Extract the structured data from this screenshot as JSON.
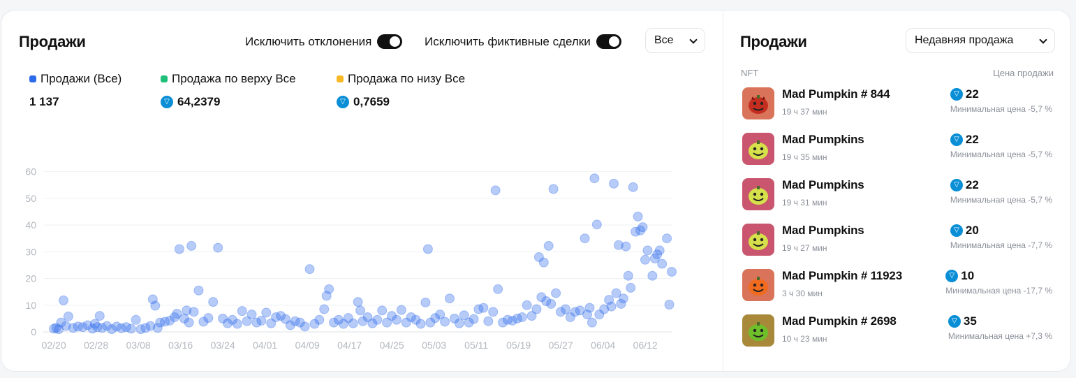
{
  "left_panel": {
    "title": "Продажи",
    "toggle_outliers_label": "Исключить отклонения",
    "toggle_fake_label": "Исключить фиктивные сделки",
    "filter_value": "Все",
    "legend": [
      {
        "label": "Продажи (Все)",
        "value": "1 137",
        "color": "#2d6bea",
        "has_ton_icon": false
      },
      {
        "label": "Продажа по верху Все",
        "value": "64,2379",
        "color": "#1fbf7a",
        "has_ton_icon": true
      },
      {
        "label": "Продажа по низу Все",
        "value": "0,7659",
        "color": "#f7b924",
        "has_ton_icon": true
      }
    ]
  },
  "chart_data": {
    "type": "scatter",
    "title": "",
    "xlabel": "",
    "ylabel": "",
    "ylim": [
      0,
      62
    ],
    "yticks": [
      0,
      10,
      20,
      30,
      40,
      50,
      60
    ],
    "xticks": [
      "02/20",
      "02/28",
      "03/08",
      "03/16",
      "03/24",
      "04/01",
      "04/09",
      "04/17",
      "04/25",
      "05/03",
      "05/11",
      "05/19",
      "05/27",
      "06/04",
      "06/12"
    ],
    "xlim_days": [
      -2,
      117
    ],
    "grid": true,
    "point_color": "#2d6bea",
    "series": [
      {
        "name": "Продажи (Все)",
        "points": [
          [
            0,
            1.2
          ],
          [
            0.5,
            1.5
          ],
          [
            1,
            1.0
          ],
          [
            1.5,
            3.5
          ],
          [
            2,
            11.8
          ],
          [
            2.5,
            2.2
          ],
          [
            3,
            5.8
          ],
          [
            4,
            1.5
          ],
          [
            5,
            2.0
          ],
          [
            6,
            1.8
          ],
          [
            7,
            2.5
          ],
          [
            8,
            1.2
          ],
          [
            8.5,
            3.0
          ],
          [
            9,
            1.8
          ],
          [
            9.5,
            6.0
          ],
          [
            10,
            1.5
          ],
          [
            11,
            2.2
          ],
          [
            12,
            1.0
          ],
          [
            13,
            2.0
          ],
          [
            14,
            1.4
          ],
          [
            15,
            1.8
          ],
          [
            16,
            1.2
          ],
          [
            17,
            4.5
          ],
          [
            18,
            1.0
          ],
          [
            19,
            1.5
          ],
          [
            20,
            2.2
          ],
          [
            20.5,
            12.2
          ],
          [
            21,
            9.8
          ],
          [
            21.5,
            1.5
          ],
          [
            22,
            3.5
          ],
          [
            23,
            3.8
          ],
          [
            24,
            4.2
          ],
          [
            25,
            5.5
          ],
          [
            25.5,
            6.8
          ],
          [
            26,
            31.0
          ],
          [
            27,
            5.0
          ],
          [
            27.5,
            8.0
          ],
          [
            28,
            3.5
          ],
          [
            28.5,
            32.2
          ],
          [
            29,
            7.5
          ],
          [
            30,
            15.5
          ],
          [
            31,
            3.8
          ],
          [
            32,
            5.2
          ],
          [
            33,
            11.2
          ],
          [
            34,
            31.5
          ],
          [
            35,
            5.0
          ],
          [
            36,
            3.2
          ],
          [
            37,
            4.5
          ],
          [
            38,
            3.0
          ],
          [
            39,
            7.8
          ],
          [
            40,
            4.0
          ],
          [
            41,
            6.5
          ],
          [
            42,
            3.5
          ],
          [
            43,
            4.2
          ],
          [
            44,
            7.2
          ],
          [
            45,
            3.2
          ],
          [
            46,
            5.5
          ],
          [
            47,
            6.0
          ],
          [
            48,
            4.8
          ],
          [
            49,
            2.5
          ],
          [
            50,
            4.0
          ],
          [
            51,
            3.5
          ],
          [
            52,
            2.0
          ],
          [
            53,
            23.5
          ],
          [
            54,
            3.0
          ],
          [
            55,
            4.5
          ],
          [
            56,
            8.5
          ],
          [
            56.5,
            13.5
          ],
          [
            57,
            16.0
          ],
          [
            58,
            3.5
          ],
          [
            59,
            4.5
          ],
          [
            60,
            3.0
          ],
          [
            61,
            5.2
          ],
          [
            62,
            3.2
          ],
          [
            63,
            11.2
          ],
          [
            63.5,
            8.0
          ],
          [
            64,
            4.0
          ],
          [
            65,
            5.5
          ],
          [
            66,
            3.2
          ],
          [
            67,
            4.5
          ],
          [
            68,
            8.0
          ],
          [
            69,
            3.5
          ],
          [
            70,
            6.0
          ],
          [
            71,
            4.5
          ],
          [
            72,
            8.2
          ],
          [
            73,
            3.5
          ],
          [
            74,
            5.5
          ],
          [
            75,
            4.5
          ],
          [
            76,
            3.0
          ],
          [
            77,
            11.0
          ],
          [
            77.5,
            31.0
          ],
          [
            78,
            3.5
          ],
          [
            79,
            5.2
          ],
          [
            80,
            6.5
          ],
          [
            81,
            3.8
          ],
          [
            82,
            12.5
          ],
          [
            83,
            5.0
          ],
          [
            84,
            3.2
          ],
          [
            85,
            6.2
          ],
          [
            86,
            3.5
          ],
          [
            87,
            4.8
          ],
          [
            88,
            8.5
          ],
          [
            89,
            9.0
          ],
          [
            90,
            4.0
          ],
          [
            91,
            7.5
          ],
          [
            91.5,
            53.0
          ],
          [
            92,
            16.0
          ],
          [
            93,
            3.5
          ],
          [
            94,
            4.5
          ],
          [
            95,
            4.2
          ],
          [
            96,
            5.0
          ],
          [
            97,
            5.5
          ],
          [
            98,
            10.0
          ],
          [
            99,
            6.0
          ],
          [
            100,
            8.5
          ],
          [
            100.5,
            28.0
          ],
          [
            101,
            13.0
          ],
          [
            101.5,
            26.0
          ],
          [
            102,
            11.5
          ],
          [
            102.5,
            32.2
          ],
          [
            103,
            10.5
          ],
          [
            103.5,
            53.5
          ],
          [
            104,
            14.5
          ],
          [
            105,
            7.5
          ],
          [
            106,
            8.5
          ],
          [
            107,
            5.5
          ],
          [
            108,
            7.5
          ],
          [
            109,
            8.0
          ],
          [
            110,
            35.0
          ],
          [
            110.5,
            6.5
          ],
          [
            111,
            9.0
          ],
          [
            111.5,
            3.5
          ],
          [
            112,
            57.5
          ],
          [
            112.5,
            40.2
          ],
          [
            113,
            6.5
          ],
          [
            114,
            8.5
          ],
          [
            115,
            12.0
          ],
          [
            115.5,
            9.5
          ],
          [
            116,
            55.5
          ],
          [
            116.5,
            14.5
          ],
          [
            117,
            32.5
          ],
          [
            117.5,
            10.5
          ],
          [
            118,
            12.5
          ],
          [
            118.5,
            32.0
          ],
          [
            119,
            21.0
          ],
          [
            119.5,
            16.5
          ],
          [
            120,
            54.2
          ],
          [
            120.5,
            37.5
          ],
          [
            121,
            43.2
          ],
          [
            121.5,
            38.0
          ],
          [
            122,
            39.2
          ],
          [
            122.5,
            27.0
          ],
          [
            123,
            30.5
          ],
          [
            124,
            21.0
          ],
          [
            124.5,
            27.5
          ],
          [
            125,
            29.0
          ],
          [
            125.5,
            30.5
          ],
          [
            126,
            25.5
          ],
          [
            127,
            35.0
          ],
          [
            127.5,
            10.2
          ],
          [
            128,
            22.5
          ]
        ]
      }
    ]
  },
  "right_panel": {
    "title": "Продажи",
    "sort_value": "Недавняя продажа",
    "col_nft": "NFT",
    "col_price": "Цена продажи",
    "items": [
      {
        "name": "Mad Pumpkin  # 844",
        "time": "19 ч 37 мин",
        "price": "22",
        "note": "Минимальная цена -5,7 %",
        "bg": "#d9745a",
        "pumpkin": "#c42d20",
        "face": "devil"
      },
      {
        "name": "Mad Pumpkins",
        "time": "19 ч 35 мин",
        "price": "22",
        "note": "Минимальная цена -5,7 %",
        "bg": "#c9566e",
        "pumpkin": "#d6e04a",
        "face": "smile"
      },
      {
        "name": "Mad Pumpkins",
        "time": "19 ч 31 мин",
        "price": "22",
        "note": "Минимальная цена -5,7 %",
        "bg": "#c9566e",
        "pumpkin": "#d6e04a",
        "face": "smile"
      },
      {
        "name": "Mad Pumpkins",
        "time": "19 ч 27 мин",
        "price": "20",
        "note": "Минимальная цена -7,7 %",
        "bg": "#c9566e",
        "pumpkin": "#d6e04a",
        "face": "smile"
      },
      {
        "name": "Mad Pumpkin  # 11923",
        "time": "3 ч 30 мин",
        "price": "10",
        "note": "Минимальная цена -17,7 %",
        "bg": "#d9745a",
        "pumpkin": "#f06a20",
        "face": "grin"
      },
      {
        "name": "Mad Pumpkin  # 2698",
        "time": "10 ч 23 мин",
        "price": "35",
        "note": "Минимальная цена +7,3 %",
        "bg": "#a8893a",
        "pumpkin": "#6fbf2a",
        "face": "grin"
      }
    ]
  }
}
